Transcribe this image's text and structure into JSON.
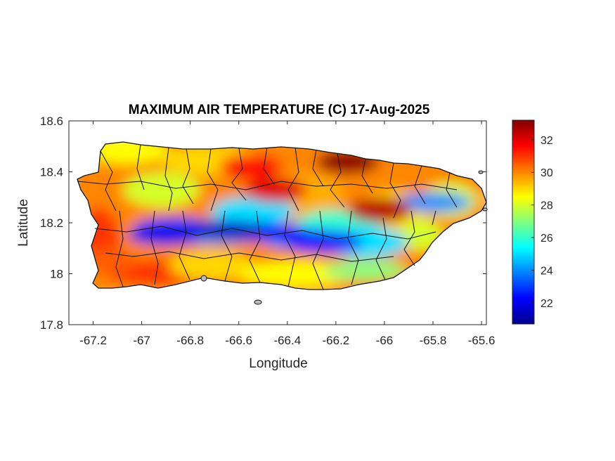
{
  "chart_data": {
    "type": "heatmap",
    "title": "MAXIMUM AIR TEMPERATURE (C) 17-Aug-2025",
    "xlabel": "Longitude",
    "ylabel": "Latitude",
    "xlim": [
      -67.3,
      -65.58
    ],
    "ylim": [
      17.8,
      18.6
    ],
    "xticks": [
      -67.2,
      -67,
      -66.8,
      -66.6,
      -66.4,
      -66.2,
      -66,
      -65.8,
      -65.6
    ],
    "xtick_labels": [
      "-67.2",
      "-67",
      "-66.8",
      "-66.6",
      "-66.4",
      "-66.2",
      "-66",
      "-65.8",
      "-65.6"
    ],
    "yticks": [
      17.8,
      18,
      18.2,
      18.4,
      18.6
    ],
    "ytick_labels": [
      "17.8",
      "18",
      "18.2",
      "18.4",
      "18.6"
    ],
    "colorbar": {
      "colormap": "jet",
      "range": [
        20.7,
        33.2
      ],
      "ticks": [
        22,
        24,
        26,
        28,
        30,
        32
      ],
      "tick_labels": [
        "22",
        "24",
        "26",
        "28",
        "30",
        "32"
      ]
    },
    "grid": false,
    "region": "Puerto Rico municipalities",
    "hotspots": [
      {
        "lon": -66.15,
        "lat": 18.44,
        "value": 33
      },
      {
        "lon": -66.02,
        "lat": 18.25,
        "value": 32.5
      },
      {
        "lon": -66.45,
        "lat": 18.33,
        "value": 32
      },
      {
        "lon": -66.55,
        "lat": 18.42,
        "value": 31.5
      },
      {
        "lon": -67.15,
        "lat": 18.05,
        "value": 30.5
      }
    ],
    "coldspots": [
      {
        "lon": -66.65,
        "lat": 18.17,
        "value": 21.5
      },
      {
        "lon": -66.9,
        "lat": 18.15,
        "value": 22
      },
      {
        "lon": -66.25,
        "lat": 18.12,
        "value": 22.5
      },
      {
        "lon": -65.8,
        "lat": 18.28,
        "value": 24
      }
    ]
  }
}
